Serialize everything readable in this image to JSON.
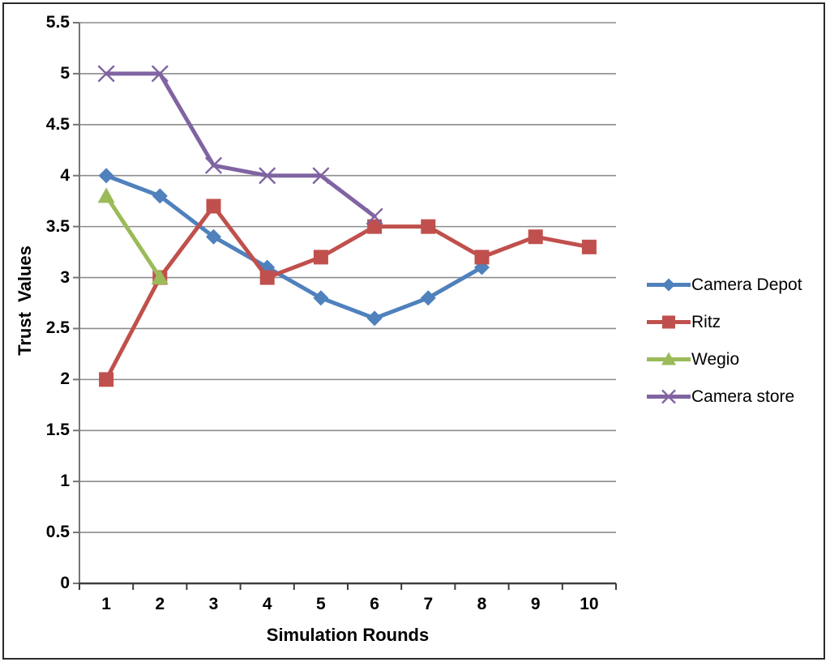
{
  "figure": {
    "background": "#ffffff",
    "border_color": "#2a2a2a"
  },
  "chart_data": {
    "type": "line",
    "title": "",
    "xlabel": "Simulation Rounds",
    "ylabel": "Trust  Values",
    "x_tick_labels": [
      "1",
      "2",
      "3",
      "4",
      "5",
      "6",
      "7",
      "8",
      "9",
      "10"
    ],
    "y_tick_labels": [
      "0",
      "0.5",
      "1",
      "1.5",
      "2",
      "2.5",
      "3",
      "3.5",
      "4",
      "4.5",
      "5",
      "5.5"
    ],
    "ylim": [
      0,
      5.5
    ],
    "x_categories": 10,
    "grid": "horizontal",
    "gridline_color": "#8c8c8c",
    "y_axis_color": "#757575",
    "x_axis_color": "#3d3d3d",
    "legend_position": "right",
    "series": [
      {
        "name": "Camera Depot",
        "color": "#4F81BD",
        "marker": "diamond",
        "x": [
          1,
          2,
          3,
          4,
          5,
          6,
          7,
          8
        ],
        "values": [
          4.0,
          3.8,
          3.4,
          3.1,
          2.8,
          2.6,
          2.8,
          3.1
        ]
      },
      {
        "name": "Ritz",
        "color": "#C0504D",
        "marker": "square",
        "x": [
          1,
          2,
          3,
          4,
          5,
          6,
          7,
          8,
          9,
          10
        ],
        "values": [
          2.0,
          3.0,
          3.7,
          3.0,
          3.2,
          3.5,
          3.5,
          3.2,
          3.4,
          3.3
        ]
      },
      {
        "name": "Wegio",
        "color": "#9BBB59",
        "marker": "triangle",
        "x": [
          1,
          2
        ],
        "values": [
          3.8,
          3.0
        ]
      },
      {
        "name": "Camera store",
        "color": "#8064A2",
        "marker": "x",
        "x": [
          1,
          2,
          3,
          4,
          5,
          6
        ],
        "values": [
          5.0,
          5.0,
          4.1,
          4.0,
          4.0,
          3.6
        ]
      }
    ]
  }
}
